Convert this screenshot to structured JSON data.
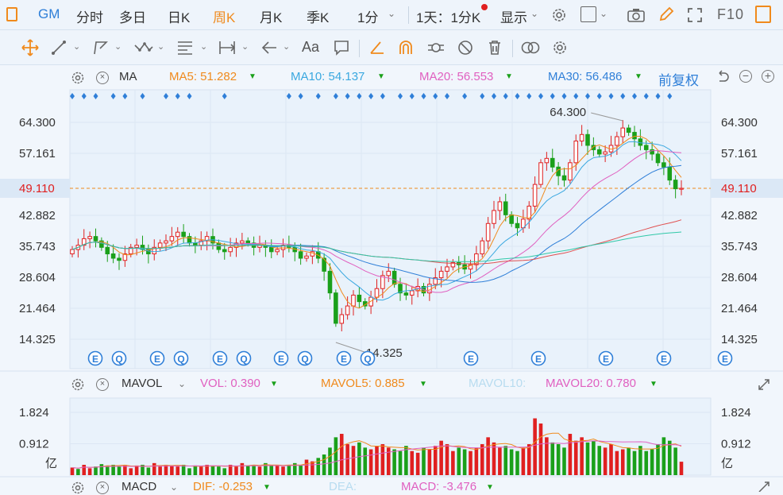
{
  "header": {
    "symbol": "GM",
    "tabs": [
      "分时",
      "多日",
      "日K",
      "周K",
      "月K",
      "季K",
      "1分"
    ],
    "active_tab": "周K",
    "period_selector": "1天：1分K",
    "display_label": "显示",
    "f10_label": "F10"
  },
  "toolbar": {
    "text_tool_label": "Aa",
    "icons": [
      "crosshair-icon",
      "line-icon",
      "polyline-icon",
      "zigzag-icon",
      "text-list-icon",
      "range-icon",
      "arrow-left-icon",
      "text-icon",
      "comment-icon",
      "ruler-icon",
      "magnet-icon",
      "link-icon",
      "hide-icon",
      "trash-icon",
      "compare-icon",
      "settings-icon"
    ]
  },
  "main_indicators": {
    "name": "MA",
    "ma5": "MA5: 51.282",
    "ma10": "MA10: 54.137",
    "ma20": "MA20: 56.553",
    "ma30": "MA30: 56.486",
    "adjust": "前复权",
    "colors": {
      "ma5": "#f08a1c",
      "ma10": "#3aa8e0",
      "ma20": "#e060c0",
      "ma30": "#2f7fd8"
    }
  },
  "volume_indicators": {
    "name": "MAVOL",
    "vol": "VOL: 0.390",
    "mavol5": "MAVOL5: 0.885",
    "mavol10": "MAVOL10:",
    "mavol20": "MAVOL20: 0.780"
  },
  "macd_indicators": {
    "name": "MACD",
    "dif": "DIF: -0.253",
    "dea": "DEA:",
    "macd": "MACD: -3.476"
  },
  "event_marker_letters": [
    "E",
    "Q"
  ],
  "chart_data": [
    {
      "type": "candlestick",
      "y_ticks": [
        "64.300",
        "57.161",
        "49.110",
        "42.882",
        "35.743",
        "28.604",
        "21.464",
        "14.325"
      ],
      "ylim": [
        14.325,
        64.3
      ],
      "current_price": "49.110",
      "max_label": "64.300",
      "min_label": "14.325",
      "colors": {
        "up": "#e02020",
        "down": "#1aa01a"
      },
      "closes": [
        35.0,
        36.0,
        37.5,
        38.0,
        37.0,
        35.5,
        34.0,
        33.0,
        32.5,
        34.0,
        35.5,
        36.0,
        35.0,
        34.0,
        35.5,
        36.5,
        37.0,
        38.0,
        39.0,
        38.0,
        36.5,
        36.0,
        37.0,
        38.0,
        36.5,
        35.0,
        34.5,
        35.5,
        36.5,
        37.0,
        36.5,
        35.5,
        36.0,
        35.5,
        34.5,
        35.0,
        36.0,
        35.5,
        34.5,
        33.0,
        33.5,
        34.5,
        33.0,
        30.0,
        25.0,
        18.0,
        20.0,
        22.0,
        24.5,
        23.0,
        22.0,
        24.0,
        26.0,
        29.0,
        30.0,
        27.0,
        25.0,
        24.5,
        25.5,
        26.5,
        25.0,
        27.0,
        28.5,
        30.0,
        31.0,
        32.0,
        31.5,
        30.5,
        31.5,
        34.0,
        37.0,
        41.0,
        44.0,
        46.0,
        43.0,
        41.0,
        40.0,
        42.0,
        45.0,
        50.0,
        55.0,
        56.0,
        54.0,
        52.0,
        51.0,
        55.0,
        60.0,
        61.5,
        59.0,
        58.0,
        57.0,
        57.5,
        59.0,
        61.0,
        63.0,
        62.0,
        60.5,
        59.0,
        58.0,
        57.0,
        55.0,
        54.0,
        51.0,
        49.0,
        49.11
      ],
      "ma_lines": {
        "ma5_last": 51.282,
        "ma10_last": 54.137,
        "ma20_last": 56.553,
        "ma30_last": 56.486
      }
    },
    {
      "type": "bar",
      "series_name": "VOL",
      "y_ticks": [
        "1.824",
        "0.912"
      ],
      "unit": "亿",
      "ylim": [
        0,
        1.824
      ],
      "values": [
        0.22,
        0.18,
        0.3,
        0.2,
        0.25,
        0.32,
        0.28,
        0.3,
        0.25,
        0.3,
        0.2,
        0.28,
        0.3,
        0.22,
        0.35,
        0.25,
        0.3,
        0.28,
        0.25,
        0.3,
        0.2,
        0.28,
        0.25,
        0.3,
        0.28,
        0.25,
        0.2,
        0.3,
        0.25,
        0.35,
        0.28,
        0.3,
        0.25,
        0.35,
        0.3,
        0.28,
        0.25,
        0.3,
        0.35,
        0.3,
        0.45,
        0.4,
        0.5,
        0.6,
        0.8,
        1.1,
        1.2,
        0.9,
        0.85,
        0.95,
        0.8,
        0.75,
        0.85,
        0.9,
        0.8,
        0.75,
        0.7,
        0.85,
        0.7,
        0.65,
        0.8,
        0.75,
        0.85,
        1.0,
        0.9,
        0.7,
        0.8,
        0.75,
        0.7,
        0.8,
        0.9,
        1.1,
        0.95,
        0.8,
        0.85,
        0.75,
        0.7,
        0.8,
        0.9,
        1.65,
        1.5,
        1.1,
        0.95,
        0.9,
        0.8,
        1.2,
        1.0,
        1.1,
        0.95,
        1.0,
        0.85,
        0.8,
        0.9,
        0.7,
        0.75,
        0.8,
        0.7,
        0.85,
        0.7,
        0.75,
        0.9,
        1.1,
        1.0,
        0.8,
        0.39
      ],
      "up_flags": [
        1,
        0,
        1,
        1,
        0,
        0,
        0,
        0,
        0,
        1,
        1,
        1,
        0,
        0,
        1,
        1,
        1,
        1,
        1,
        0,
        0,
        0,
        1,
        1,
        0,
        0,
        0,
        1,
        1,
        1,
        0,
        0,
        1,
        0,
        0,
        1,
        1,
        0,
        0,
        0,
        1,
        1,
        0,
        0,
        0,
        0,
        1,
        1,
        1,
        0,
        0,
        1,
        1,
        1,
        1,
        0,
        0,
        0,
        1,
        1,
        0,
        1,
        1,
        1,
        1,
        1,
        0,
        0,
        1,
        1,
        1,
        1,
        1,
        1,
        0,
        0,
        0,
        1,
        1,
        1,
        1,
        1,
        0,
        0,
        0,
        1,
        1,
        1,
        0,
        0,
        0,
        1,
        1,
        1,
        1,
        0,
        0,
        0,
        0,
        0,
        0,
        0,
        0,
        0,
        1
      ]
    }
  ]
}
